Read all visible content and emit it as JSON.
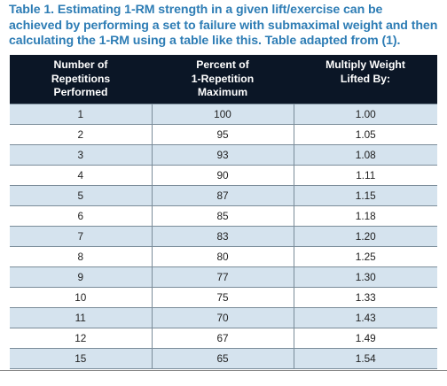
{
  "caption": "Table 1. Estimating 1-RM strength in a given lift/exercise can be achieved by performing a set to failure with submaximal weight and then calculating the 1-RM using a table like this. Table adapted from (1).",
  "headers": [
    [
      "Number of",
      "Repetitions",
      "Performed"
    ],
    [
      "Percent of",
      "1-Repetition",
      "Maximum"
    ],
    [
      "Multiply Weight",
      "Lifted By:"
    ]
  ],
  "rows": [
    [
      "1",
      "100",
      "1.00"
    ],
    [
      "2",
      "95",
      "1.05"
    ],
    [
      "3",
      "93",
      "1.08"
    ],
    [
      "4",
      "90",
      "1.11"
    ],
    [
      "5",
      "87",
      "1.15"
    ],
    [
      "6",
      "85",
      "1.18"
    ],
    [
      "7",
      "83",
      "1.20"
    ],
    [
      "8",
      "80",
      "1.25"
    ],
    [
      "9",
      "77",
      "1.30"
    ],
    [
      "10",
      "75",
      "1.33"
    ],
    [
      "11",
      "70",
      "1.43"
    ],
    [
      "12",
      "67",
      "1.49"
    ],
    [
      "15",
      "65",
      "1.54"
    ]
  ],
  "colors": {
    "caption": "#2e7db5",
    "header_bg": "#0b1626",
    "stripe": "#d5e3ee"
  }
}
